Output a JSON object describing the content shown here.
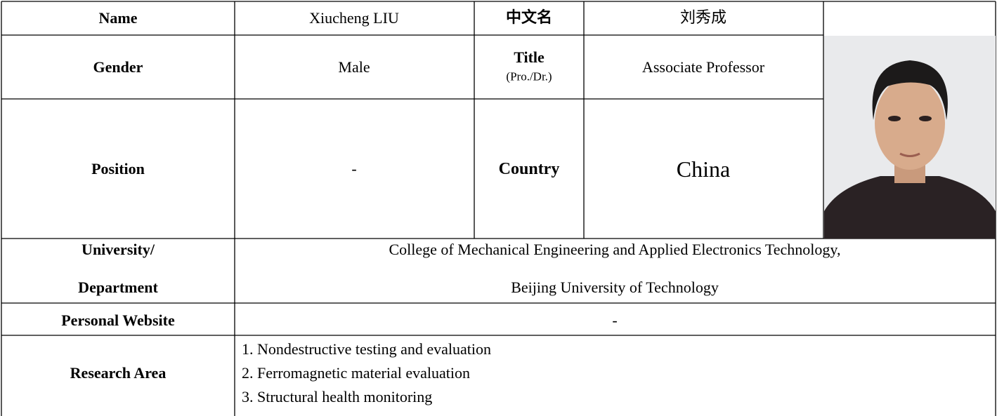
{
  "profile": {
    "name_label": "Name",
    "name": "Xiucheng LIU",
    "chinese_name_label": "中文名",
    "chinese_name": "刘秀成",
    "gender_label": "Gender",
    "gender": "Male",
    "title_label": "Title",
    "title_note": "(Pro./Dr.)",
    "title": "Associate Professor",
    "position_label": "Position",
    "position": "-",
    "country_label": "Country",
    "country": "China",
    "university_label": [
      "University/",
      "Department"
    ],
    "university": [
      "College of Mechanical Engineering and Applied Electronics Technology,",
      "Beijing University of Technology"
    ],
    "website_label": "Personal Website",
    "website": "-",
    "research_area_label": "Research Area",
    "research_areas": [
      "1. Nondestructive testing and evaluation",
      "2. Ferromagnetic material evaluation",
      "3. Structural health monitoring"
    ]
  }
}
